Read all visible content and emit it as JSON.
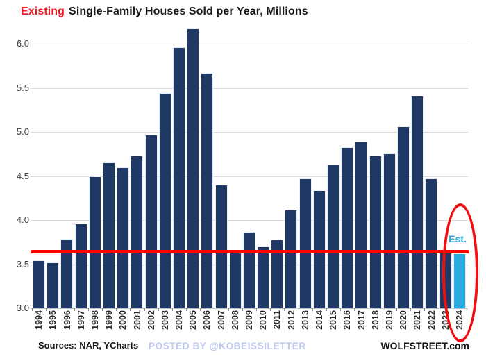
{
  "title": {
    "highlight": "Existing",
    "rest": "Single-Family Houses Sold per Year, Millions"
  },
  "footer": {
    "sources": "Sources: NAR, YCharts",
    "posted_by": "POSTED BY @KOBEISSILETTER",
    "site": "WOLFSTREET.com"
  },
  "colors": {
    "bar": "#1F3864",
    "bar_highlight": "#29ABE2",
    "reference_line": "#FF0000",
    "title_highlight": "#EC1C24",
    "gridline": "#D9D9D9",
    "axis_text": "#3F3F3F",
    "year_text": "#262626",
    "posted_by_text": "#BDC9F0",
    "dark_text": "#1A1A1A",
    "ellipse": "#F20D11"
  },
  "chart_data": {
    "type": "bar",
    "title": "Existing Single-Family Houses Sold per Year, Millions",
    "xlabel": "",
    "ylabel": "",
    "unit": "millions of houses per year",
    "categories": [
      "1994",
      "1995",
      "1996",
      "1997",
      "1998",
      "1999",
      "2000",
      "2001",
      "2002",
      "2003",
      "2004",
      "2005",
      "2006",
      "2007",
      "2008",
      "2009",
      "2010",
      "2011",
      "2012",
      "2013",
      "2014",
      "2015",
      "2016",
      "2017",
      "2018",
      "2019",
      "2020",
      "2021",
      "2022",
      "2023",
      "2024"
    ],
    "values": [
      3.54,
      3.52,
      3.79,
      3.96,
      4.5,
      4.65,
      4.6,
      4.73,
      4.97,
      5.44,
      5.96,
      6.17,
      5.67,
      4.4,
      3.66,
      3.87,
      3.7,
      3.78,
      4.12,
      4.47,
      4.34,
      4.63,
      4.83,
      4.89,
      4.73,
      4.76,
      5.06,
      5.41,
      4.47,
      3.65,
      3.62
    ],
    "highlight_index": 30,
    "est_label": "Est.",
    "reference_line_value": 3.64,
    "ylim": [
      3.0,
      6.22
    ],
    "yticks": [
      "3.0",
      "3.5",
      "4.0",
      "4.5",
      "5.0",
      "5.5",
      "6.0"
    ],
    "grid": true,
    "legend": false,
    "annotation": "2024 estimated bar circled in red ellipse"
  }
}
